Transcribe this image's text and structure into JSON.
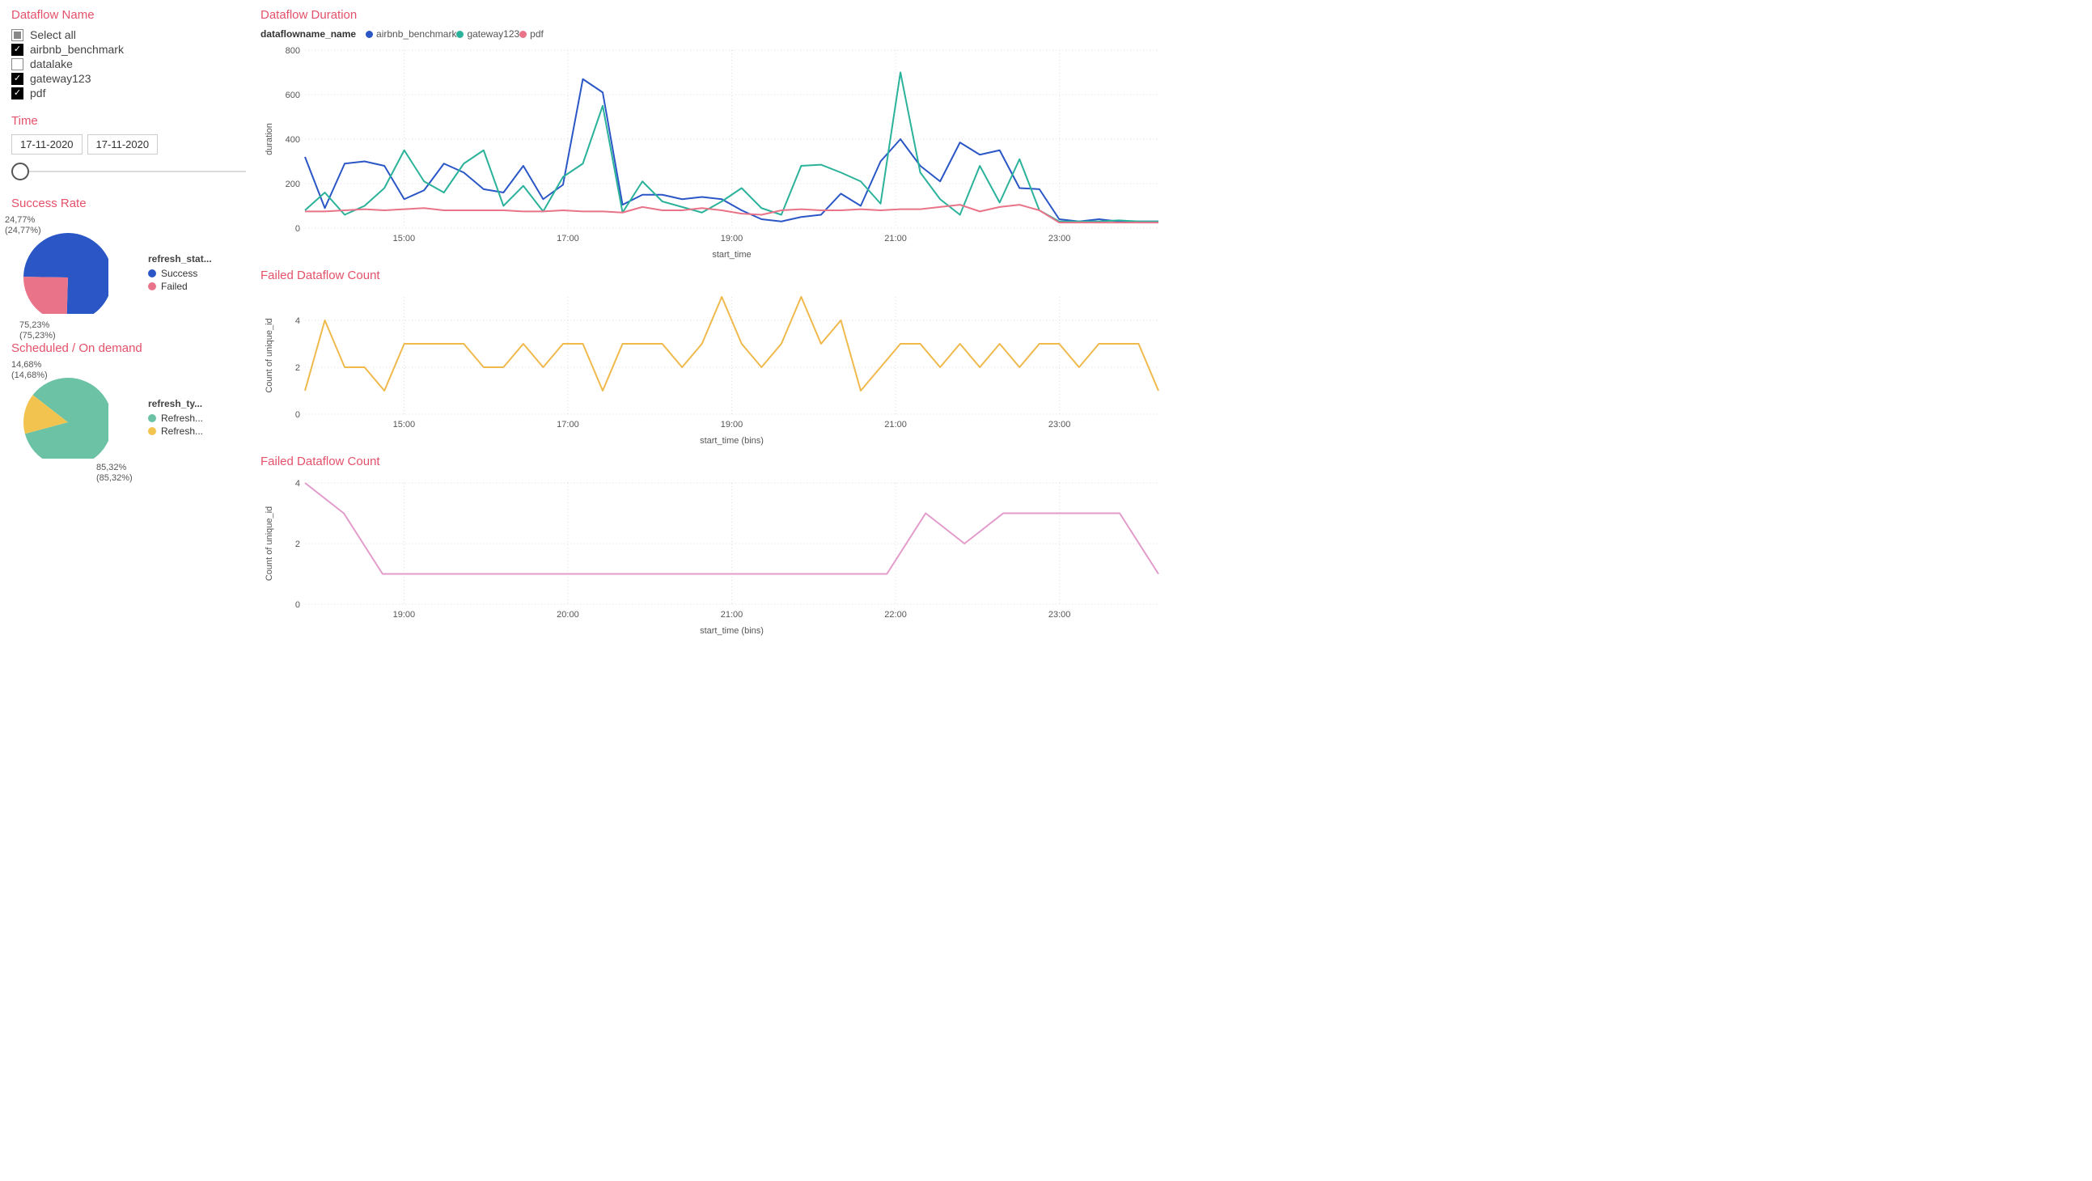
{
  "sidebar": {
    "filter_title": "Dataflow Name",
    "select_all_label": "Select all",
    "items": [
      {
        "label": "airbnb_benchmark",
        "checked": true
      },
      {
        "label": "datalake",
        "checked": false
      },
      {
        "label": "gateway123",
        "checked": true
      },
      {
        "label": "pdf",
        "checked": true
      }
    ],
    "time_title": "Time",
    "date_from": "17-11-2020",
    "date_to": "17-11-2020",
    "success_title": "Success Rate",
    "success_pie": {
      "legend_title": "refresh_stat...",
      "slices": [
        {
          "label": "Success",
          "value": 75.23,
          "color": "#2a56c6",
          "display": "75,23%\n(75,23%)"
        },
        {
          "label": "Failed",
          "value": 24.77,
          "color": "#e97388",
          "display": "24,77%\n(24,77%)"
        }
      ]
    },
    "scheduled_title": "Scheduled / On demand",
    "scheduled_pie": {
      "legend_title": "refresh_ty...",
      "slices": [
        {
          "label": "Refresh...",
          "value": 85.32,
          "color": "#6bc2a5",
          "display": "85,32%\n(85,32%)"
        },
        {
          "label": "Refresh...",
          "value": 14.68,
          "color": "#f2c44f",
          "display": "14,68%\n(14,68%)"
        }
      ]
    }
  },
  "charts": {
    "duration": {
      "title": "Dataflow Duration",
      "legend_title": "dataflowname_name",
      "ylabel": "duration",
      "xlabel": "start_time",
      "ymin": 0,
      "ymax": 800,
      "ystep": 200,
      "xticks": [
        "15:00",
        "17:00",
        "19:00",
        "21:00",
        "23:00"
      ],
      "xpoints_count": 44,
      "series": [
        {
          "name": "airbnb_benchmark",
          "color": "#2a56c6",
          "values": [
            320,
            90,
            290,
            300,
            280,
            130,
            170,
            290,
            250,
            175,
            160,
            280,
            130,
            195,
            670,
            610,
            105,
            150,
            150,
            130,
            140,
            130,
            80,
            40,
            30,
            50,
            60,
            155,
            100,
            300,
            400,
            280,
            210,
            385,
            330,
            350,
            180,
            175,
            40,
            30,
            40,
            30,
            30,
            30
          ]
        },
        {
          "name": "gateway123",
          "color": "#2bb29a",
          "values": [
            80,
            160,
            60,
            100,
            180,
            350,
            210,
            160,
            290,
            350,
            100,
            190,
            75,
            230,
            290,
            550,
            70,
            210,
            120,
            95,
            70,
            120,
            180,
            90,
            60,
            280,
            285,
            250,
            210,
            110,
            700,
            250,
            130,
            60,
            280,
            115,
            310,
            80,
            30,
            30,
            30,
            35,
            30,
            30
          ]
        },
        {
          "name": "pdf",
          "color": "#e97388",
          "values": [
            75,
            75,
            80,
            85,
            80,
            85,
            90,
            80,
            80,
            80,
            80,
            75,
            75,
            80,
            75,
            75,
            70,
            95,
            80,
            80,
            90,
            80,
            65,
            60,
            80,
            85,
            80,
            80,
            85,
            80,
            85,
            85,
            95,
            105,
            75,
            95,
            105,
            80,
            25,
            25,
            25,
            25,
            25,
            25
          ]
        }
      ]
    },
    "failed1": {
      "title": "Failed Dataflow Count",
      "ylabel": "Count of unique_id",
      "xlabel": "start_time (bins)",
      "ymin": 0,
      "ymax": 4,
      "ystep": 2,
      "color": "#efb94c",
      "xticks": [
        "15:00",
        "17:00",
        "19:00",
        "21:00",
        "23:00"
      ],
      "values": [
        1,
        4,
        2,
        2,
        1,
        3,
        3,
        3,
        3,
        2,
        2,
        3,
        2,
        3,
        3,
        1,
        3,
        3,
        3,
        2,
        3,
        5,
        3,
        2,
        3,
        5,
        3,
        4,
        1,
        2,
        3,
        3,
        2,
        3,
        2,
        3,
        2,
        3,
        3,
        2,
        3,
        3,
        3,
        1
      ]
    },
    "failed2": {
      "title": "Failed Dataflow Count",
      "ylabel": "Count of unique_id",
      "xlabel": "start_time (bins)",
      "ymin": 0,
      "ymax": 4,
      "ystep": 2,
      "color": "#e39bcb",
      "xticks": [
        "19:00",
        "20:00",
        "21:00",
        "22:00",
        "23:00"
      ],
      "values": [
        4,
        3,
        1,
        1,
        1,
        1,
        1,
        1,
        1,
        1,
        1,
        1,
        1,
        1,
        1,
        1,
        3,
        2,
        3,
        3,
        3,
        3,
        1
      ]
    }
  },
  "colors": {
    "title": "#e4516a",
    "grid": "#dddddd",
    "text": "#555555"
  }
}
